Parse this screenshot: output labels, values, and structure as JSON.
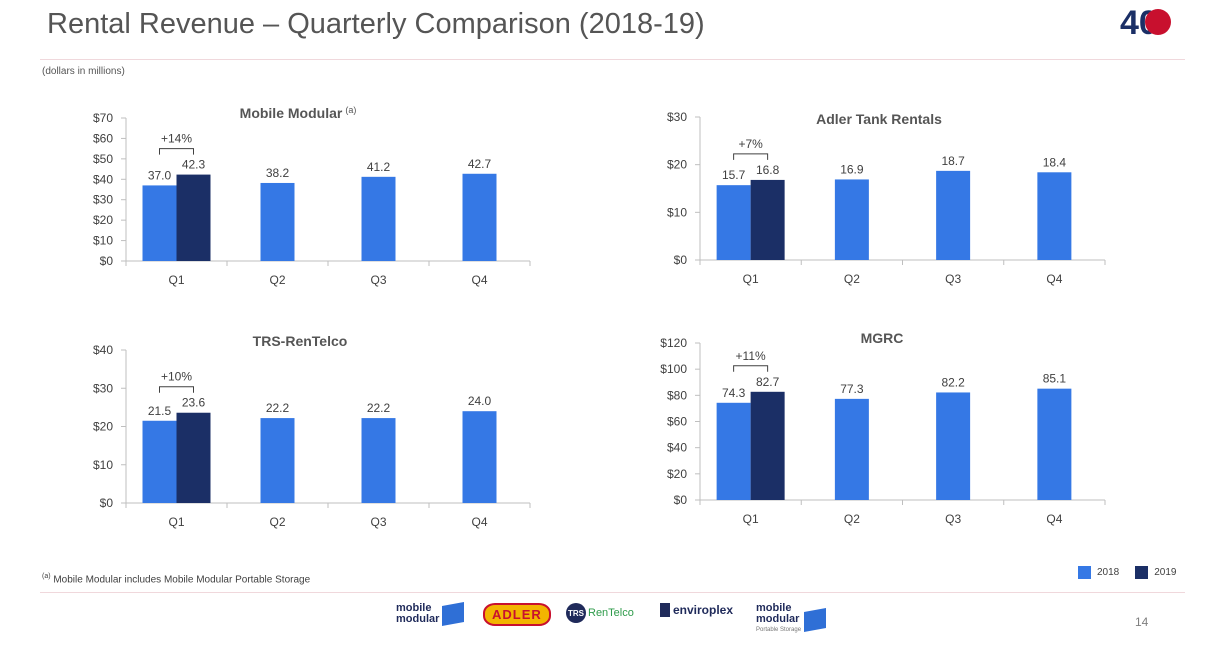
{
  "header": {
    "title": "Rental Revenue – Quarterly Comparison (2018-19)",
    "subtitle": "(dollars in millions)",
    "logo_40_text": "40"
  },
  "legend": [
    {
      "label": "2018",
      "color": "#3578e5"
    },
    {
      "label": "2019",
      "color": "#1b2f66"
    }
  ],
  "footnote": {
    "marker": "(a)",
    "text": "Mobile Modular includes Mobile Modular Portable Storage"
  },
  "page_number": "14",
  "footer_brands": {
    "mobile_modular": [
      "mobile",
      "modular"
    ],
    "adler": "ADLER",
    "trs_badge": "TRS",
    "trs_text": "RenTelco",
    "enviroplex": "enviroplex",
    "mmps": [
      "mobile",
      "modular",
      "Portable Storage"
    ]
  },
  "chart_data": [
    {
      "id": "mm",
      "type": "bar",
      "title": "Mobile Modular",
      "title_superscript": "(a)",
      "categories": [
        "Q1",
        "Q2",
        "Q3",
        "Q4"
      ],
      "series": [
        {
          "name": "2018",
          "values": [
            37.0,
            38.2,
            41.2,
            42.7
          ]
        },
        {
          "name": "2019",
          "values": [
            42.3,
            null,
            null,
            null
          ]
        }
      ],
      "value_labels_2018": [
        "37.0",
        "38.2",
        "41.2",
        "42.7"
      ],
      "value_labels_2019": [
        "42.3"
      ],
      "ylim": [
        0,
        70
      ],
      "yticks": [
        0,
        10,
        20,
        30,
        40,
        50,
        60,
        70
      ],
      "ytick_labels": [
        "$0",
        "$10",
        "$20",
        "$30",
        "$40",
        "$50",
        "$60",
        "$70"
      ],
      "annotation": "+14%"
    },
    {
      "id": "adler",
      "type": "bar",
      "title": "Adler Tank Rentals",
      "title_superscript": "",
      "categories": [
        "Q1",
        "Q2",
        "Q3",
        "Q4"
      ],
      "series": [
        {
          "name": "2018",
          "values": [
            15.7,
            16.9,
            18.7,
            18.4
          ]
        },
        {
          "name": "2019",
          "values": [
            16.8,
            null,
            null,
            null
          ]
        }
      ],
      "value_labels_2018": [
        "15.7",
        "16.9",
        "18.7",
        "18.4"
      ],
      "value_labels_2019": [
        "16.8"
      ],
      "ylim": [
        0,
        30
      ],
      "yticks": [
        0,
        10,
        20,
        30
      ],
      "ytick_labels": [
        "$0",
        "$10",
        "$20",
        "$30"
      ],
      "annotation": "+7%"
    },
    {
      "id": "trs",
      "type": "bar",
      "title": "TRS-RenTelco",
      "title_superscript": "",
      "categories": [
        "Q1",
        "Q2",
        "Q3",
        "Q4"
      ],
      "series": [
        {
          "name": "2018",
          "values": [
            21.5,
            22.2,
            22.2,
            24.0
          ]
        },
        {
          "name": "2019",
          "values": [
            23.6,
            null,
            null,
            null
          ]
        }
      ],
      "value_labels_2018": [
        "21.5",
        "22.2",
        "22.2",
        "24.0"
      ],
      "value_labels_2019": [
        "23.6"
      ],
      "ylim": [
        0,
        40
      ],
      "yticks": [
        0,
        10,
        20,
        30,
        40
      ],
      "ytick_labels": [
        "$0",
        "$10",
        "$20",
        "$30",
        "$40"
      ],
      "annotation": "+10%"
    },
    {
      "id": "mgrc",
      "type": "bar",
      "title": "MGRC",
      "title_superscript": "",
      "categories": [
        "Q1",
        "Q2",
        "Q3",
        "Q4"
      ],
      "series": [
        {
          "name": "2018",
          "values": [
            74.3,
            77.3,
            82.2,
            85.1
          ]
        },
        {
          "name": "2019",
          "values": [
            82.7,
            null,
            null,
            null
          ]
        }
      ],
      "value_labels_2018": [
        "74.3",
        "77.3",
        "82.2",
        "85.1"
      ],
      "value_labels_2019": [
        "82.7"
      ],
      "ylim": [
        0,
        120
      ],
      "yticks": [
        0,
        20,
        40,
        60,
        80,
        100,
        120
      ],
      "ytick_labels": [
        "$0",
        "$20",
        "$40",
        "$60",
        "$80",
        "$100",
        "$120"
      ],
      "annotation": "+11%"
    }
  ]
}
